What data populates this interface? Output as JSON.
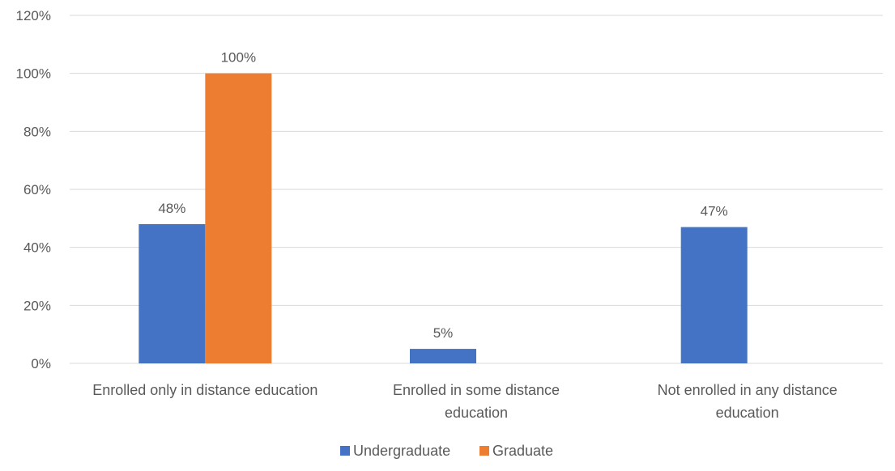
{
  "chart_data": {
    "type": "bar",
    "title": "",
    "xlabel": "",
    "ylabel": "",
    "categories": [
      [
        "Enrolled only in distance education"
      ],
      [
        "Enrolled in some distance",
        "education"
      ],
      [
        "Not enrolled in any distance",
        "education"
      ]
    ],
    "series": [
      {
        "name": "Undergraduate",
        "color": "#4472C4",
        "values": [
          48,
          5,
          47
        ],
        "labels": [
          "48%",
          "5%",
          "47%"
        ]
      },
      {
        "name": "Graduate",
        "color": "#ED7D31",
        "values": [
          100,
          null,
          null
        ],
        "labels": [
          "100%",
          "",
          ""
        ]
      }
    ],
    "ylim": [
      0,
      120
    ],
    "yticks": [
      0,
      20,
      40,
      60,
      80,
      100,
      120
    ],
    "ytick_labels": [
      "0%",
      "20%",
      "40%",
      "60%",
      "80%",
      "100%",
      "120%"
    ],
    "grid": true,
    "legend_position": "bottom-center"
  }
}
